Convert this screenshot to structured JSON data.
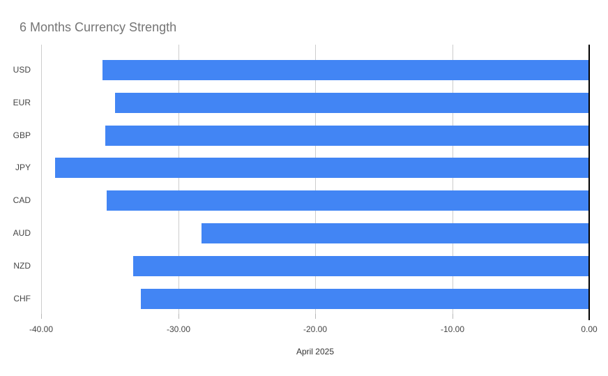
{
  "chart": {
    "title": "6 Months Currency Strength",
    "xlabel": "April 2025"
  },
  "chart_data": {
    "type": "bar",
    "orientation": "horizontal",
    "title": "6 Months Currency Strength",
    "xlabel": "April 2025",
    "ylabel": "",
    "categories": [
      "USD",
      "EUR",
      "GBP",
      "JPY",
      "CAD",
      "AUD",
      "NZD",
      "CHF"
    ],
    "values": [
      -35.5,
      -34.6,
      -35.3,
      -39.0,
      -35.2,
      -28.3,
      -33.3,
      -32.7
    ],
    "xlim": [
      -40,
      0
    ],
    "xticks": [
      -40,
      -30,
      -20,
      -10,
      0
    ],
    "xtick_labels": [
      "-40.00",
      "-30.00",
      "-20.00",
      "-10.00",
      "0.00"
    ],
    "grid": true,
    "legend": false,
    "colors": {
      "bar": "#4285f4",
      "gridline": "#cccccc",
      "zero_line": "#000000",
      "tick_label": "#444444",
      "category_label": "#444444",
      "title": "#757575",
      "axis_title": "#333333",
      "background": "#ffffff"
    }
  }
}
